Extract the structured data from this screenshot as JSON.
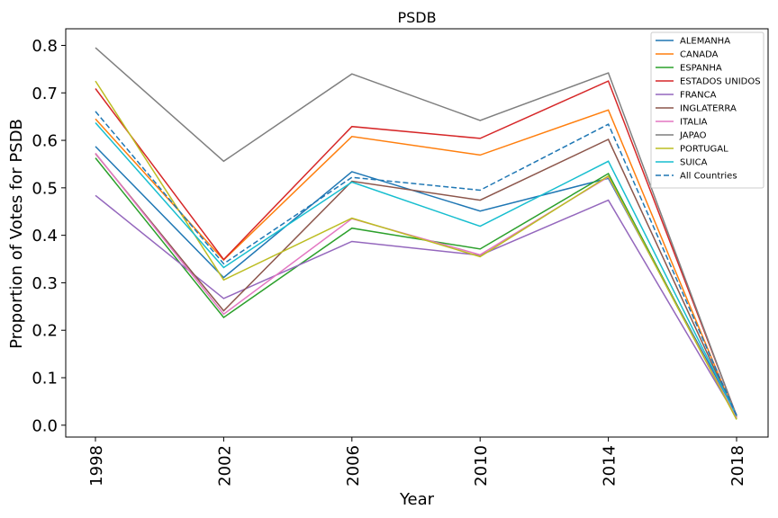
{
  "chart_data": {
    "type": "line",
    "title": "PSDB",
    "xlabel": "Year",
    "ylabel": "Proportion of Votes for PSDB",
    "x": [
      "1998",
      "2002",
      "2006",
      "2010",
      "2014",
      "2018"
    ],
    "ylim": [
      -0.025,
      0.835
    ],
    "yticks": [
      "0.0",
      "0.1",
      "0.2",
      "0.3",
      "0.4",
      "0.5",
      "0.6",
      "0.7",
      "0.8"
    ],
    "grid": false,
    "legend_position": "top-right",
    "series": [
      {
        "name": "ALEMANHA",
        "color": "#1f77b4",
        "dashed": false,
        "values": [
          0.587,
          0.311,
          0.534,
          0.451,
          0.52,
          0.022
        ]
      },
      {
        "name": "CANADA",
        "color": "#ff7f0e",
        "dashed": false,
        "values": [
          0.645,
          0.348,
          0.608,
          0.569,
          0.664,
          0.015
        ]
      },
      {
        "name": "ESPANHA",
        "color": "#2ca02c",
        "dashed": false,
        "values": [
          0.563,
          0.227,
          0.415,
          0.371,
          0.53,
          0.013
        ]
      },
      {
        "name": "ESTADOS UNIDOS",
        "color": "#d62728",
        "dashed": false,
        "values": [
          0.709,
          0.349,
          0.629,
          0.604,
          0.725,
          0.02
        ]
      },
      {
        "name": "FRANCA",
        "color": "#9467bd",
        "dashed": false,
        "values": [
          0.484,
          0.267,
          0.387,
          0.358,
          0.474,
          0.016
        ]
      },
      {
        "name": "INGLATERRA",
        "color": "#8c564b",
        "dashed": false,
        "values": [
          0.572,
          0.241,
          0.514,
          0.474,
          0.602,
          0.018
        ]
      },
      {
        "name": "ITALIA",
        "color": "#e377c2",
        "dashed": false,
        "values": [
          0.573,
          0.234,
          0.435,
          0.359,
          0.523,
          0.015
        ]
      },
      {
        "name": "JAPAO",
        "color": "#7f7f7f",
        "dashed": false,
        "values": [
          0.795,
          0.556,
          0.74,
          0.642,
          0.742,
          0.019
        ]
      },
      {
        "name": "PORTUGAL",
        "color": "#bcbd22",
        "dashed": false,
        "values": [
          0.725,
          0.306,
          0.436,
          0.355,
          0.525,
          0.012
        ]
      },
      {
        "name": "SUICA",
        "color": "#17becf",
        "dashed": false,
        "values": [
          0.637,
          0.332,
          0.512,
          0.419,
          0.556,
          0.02
        ]
      },
      {
        "name": "All Countries",
        "color": "#1f77b4",
        "dashed": true,
        "values": [
          0.661,
          0.34,
          0.522,
          0.495,
          0.634,
          0.02
        ]
      }
    ]
  }
}
